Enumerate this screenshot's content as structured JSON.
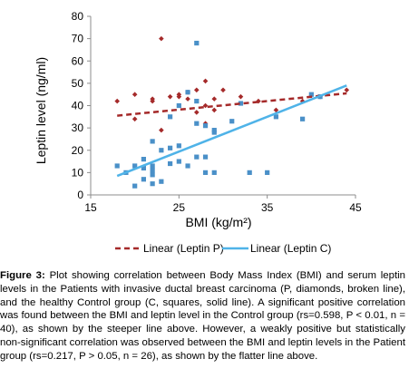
{
  "chart_data": {
    "type": "scatter",
    "xlabel": "BMI (kg/m²)",
    "ylabel": "Leptin level (ng/ml)",
    "xlim": [
      15,
      45
    ],
    "ylim": [
      0,
      80
    ],
    "x_ticks": [
      "15",
      "25",
      "35",
      "45"
    ],
    "y_ticks": [
      "0",
      "10",
      "20",
      "30",
      "40",
      "50",
      "60",
      "70",
      "80"
    ],
    "grid": false,
    "legend_position": "bottom",
    "series": [
      {
        "name": "Linear (Leptin P)",
        "marker": "diamond",
        "color": "#a52a2a",
        "line_style": "dashed",
        "points": [
          [
            18,
            42
          ],
          [
            20,
            34
          ],
          [
            20,
            45
          ],
          [
            22,
            42
          ],
          [
            22,
            43
          ],
          [
            23,
            70
          ],
          [
            23,
            29
          ],
          [
            24,
            44
          ],
          [
            25,
            44
          ],
          [
            25,
            45
          ],
          [
            26,
            43
          ],
          [
            26,
            46
          ],
          [
            27,
            47
          ],
          [
            27,
            37
          ],
          [
            28,
            51
          ],
          [
            28,
            40
          ],
          [
            28,
            32
          ],
          [
            29,
            43
          ],
          [
            29,
            38
          ],
          [
            30,
            47
          ],
          [
            32,
            44
          ],
          [
            34,
            42
          ],
          [
            36,
            38
          ],
          [
            39,
            42
          ],
          [
            41,
            44
          ],
          [
            44,
            47
          ]
        ],
        "trend": [
          [
            18,
            35.5
          ],
          [
            44,
            45.5
          ]
        ]
      },
      {
        "name": "Linear (Leptin C)",
        "marker": "square",
        "color": "#4a90c8",
        "line_style": "solid",
        "points": [
          [
            18,
            13
          ],
          [
            19,
            10
          ],
          [
            20,
            4
          ],
          [
            20,
            13
          ],
          [
            21,
            7
          ],
          [
            21,
            12
          ],
          [
            21,
            16
          ],
          [
            22,
            5
          ],
          [
            22,
            9
          ],
          [
            22,
            11
          ],
          [
            22,
            13
          ],
          [
            22,
            24
          ],
          [
            23,
            6
          ],
          [
            23,
            20
          ],
          [
            24,
            14
          ],
          [
            24,
            21
          ],
          [
            25,
            15
          ],
          [
            25,
            22
          ],
          [
            25,
            40
          ],
          [
            26,
            13
          ],
          [
            26,
            46
          ],
          [
            27,
            68
          ],
          [
            27,
            32
          ],
          [
            27,
            17
          ],
          [
            28,
            10
          ],
          [
            28,
            31
          ],
          [
            28,
            17
          ],
          [
            29,
            28
          ],
          [
            29,
            29
          ],
          [
            29,
            10
          ],
          [
            31,
            33
          ],
          [
            32,
            41
          ],
          [
            33,
            10
          ],
          [
            35,
            10
          ],
          [
            36,
            35
          ],
          [
            39,
            34
          ],
          [
            40,
            45
          ],
          [
            41,
            44
          ],
          [
            27,
            42
          ],
          [
            24,
            35
          ]
        ],
        "trend": [
          [
            18,
            8.5
          ],
          [
            44,
            49
          ]
        ]
      }
    ]
  },
  "caption": {
    "label": "Figure 3:",
    "text": "Plot showing correlation between Body Mass Index (BMI) and serum leptin levels in the Patients with invasive ductal breast carcinoma (P, diamonds, broken line), and the healthy Control group (C, squares, solid line). A significant positive correlation was found between the BMI and leptin level in the Control group (rs=0.598, P < 0.01, n = 40), as shown by the steeper line above. However, a weakly positive but statistically non-significant correlation was observed between the BMI and leptin levels in the Patient group (rs=0.217, P > 0.05, n = 26), as shown by the flatter line above."
  }
}
